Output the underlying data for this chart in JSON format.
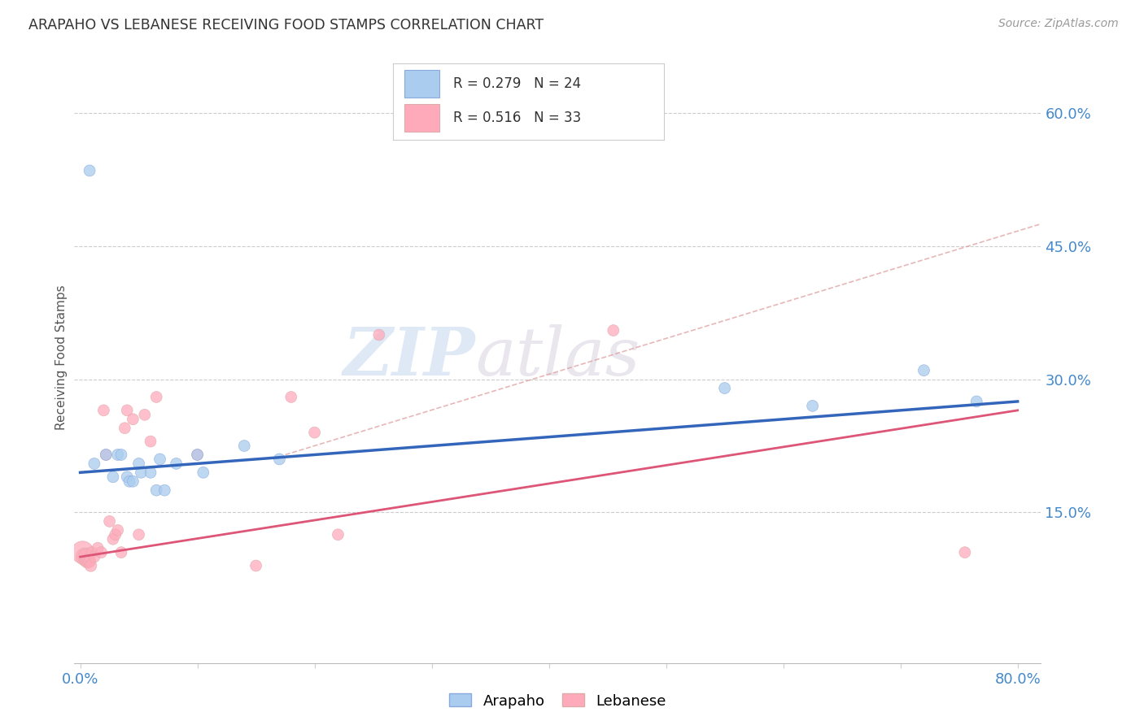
{
  "title": "ARAPAHO VS LEBANESE RECEIVING FOOD STAMPS CORRELATION CHART",
  "source": "Source: ZipAtlas.com",
  "ylabel": "Receiving Food Stamps",
  "xlim": [
    -0.005,
    0.82
  ],
  "ylim": [
    -0.02,
    0.67
  ],
  "xtick_positions": [
    0.0,
    0.1,
    0.2,
    0.3,
    0.4,
    0.5,
    0.6,
    0.7,
    0.8
  ],
  "xticklabels": [
    "0.0%",
    "",
    "",
    "",
    "",
    "",
    "",
    "",
    "80.0%"
  ],
  "ytick_right_vals": [
    0.15,
    0.3,
    0.45,
    0.6
  ],
  "ytick_right_labels": [
    "15.0%",
    "30.0%",
    "45.0%",
    "60.0%"
  ],
  "grid_color": "#cccccc",
  "bg_color": "#ffffff",
  "arapaho_fill": "#aaccee",
  "arapaho_edge": "#88aadd",
  "lebanese_fill": "#ffaabb",
  "lebanese_edge": "#ddaaaa",
  "arapaho_line_color": "#3366bb",
  "lebanese_line_color": "#dd5577",
  "dash_line_color": "#dd9999",
  "arapaho_R": 0.279,
  "arapaho_N": 24,
  "lebanese_R": 0.516,
  "lebanese_N": 33,
  "watermark_zip": "ZIP",
  "watermark_atlas": "atlas",
  "arapaho_x": [
    0.008,
    0.012,
    0.022,
    0.028,
    0.032,
    0.035,
    0.04,
    0.042,
    0.045,
    0.05,
    0.052,
    0.06,
    0.065,
    0.068,
    0.072,
    0.082,
    0.1,
    0.105,
    0.14,
    0.17,
    0.55,
    0.625,
    0.72,
    0.765
  ],
  "arapaho_y": [
    0.535,
    0.205,
    0.215,
    0.19,
    0.215,
    0.215,
    0.19,
    0.185,
    0.185,
    0.205,
    0.195,
    0.195,
    0.175,
    0.21,
    0.175,
    0.205,
    0.215,
    0.195,
    0.225,
    0.21,
    0.29,
    0.27,
    0.31,
    0.275
  ],
  "arapaho_sizes": [
    100,
    100,
    100,
    100,
    100,
    100,
    100,
    100,
    100,
    100,
    100,
    100,
    100,
    100,
    100,
    100,
    100,
    100,
    100,
    100,
    100,
    100,
    100,
    100
  ],
  "lebanese_x": [
    0.002,
    0.004,
    0.005,
    0.006,
    0.007,
    0.008,
    0.009,
    0.01,
    0.012,
    0.015,
    0.018,
    0.02,
    0.022,
    0.025,
    0.028,
    0.03,
    0.032,
    0.035,
    0.038,
    0.04,
    0.045,
    0.05,
    0.055,
    0.06,
    0.065,
    0.1,
    0.15,
    0.18,
    0.2,
    0.22,
    0.255,
    0.455,
    0.755
  ],
  "lebanese_y": [
    0.105,
    0.1,
    0.1,
    0.095,
    0.095,
    0.095,
    0.09,
    0.105,
    0.1,
    0.11,
    0.105,
    0.265,
    0.215,
    0.14,
    0.12,
    0.125,
    0.13,
    0.105,
    0.245,
    0.265,
    0.255,
    0.125,
    0.26,
    0.23,
    0.28,
    0.215,
    0.09,
    0.28,
    0.24,
    0.125,
    0.35,
    0.355,
    0.105
  ],
  "lebanese_sizes": [
    400,
    250,
    200,
    150,
    130,
    120,
    110,
    100,
    100,
    100,
    100,
    100,
    100,
    100,
    100,
    100,
    100,
    100,
    100,
    100,
    100,
    100,
    100,
    100,
    100,
    100,
    100,
    100,
    100,
    100,
    100,
    100,
    100
  ],
  "arapaho_line_x": [
    0.0,
    0.8
  ],
  "arapaho_line_y": [
    0.195,
    0.275
  ],
  "lebanese_line_x": [
    0.0,
    0.8
  ],
  "lebanese_line_y": [
    0.1,
    0.265
  ],
  "dash_line_x": [
    0.175,
    0.82
  ],
  "dash_line_y": [
    0.215,
    0.475
  ]
}
